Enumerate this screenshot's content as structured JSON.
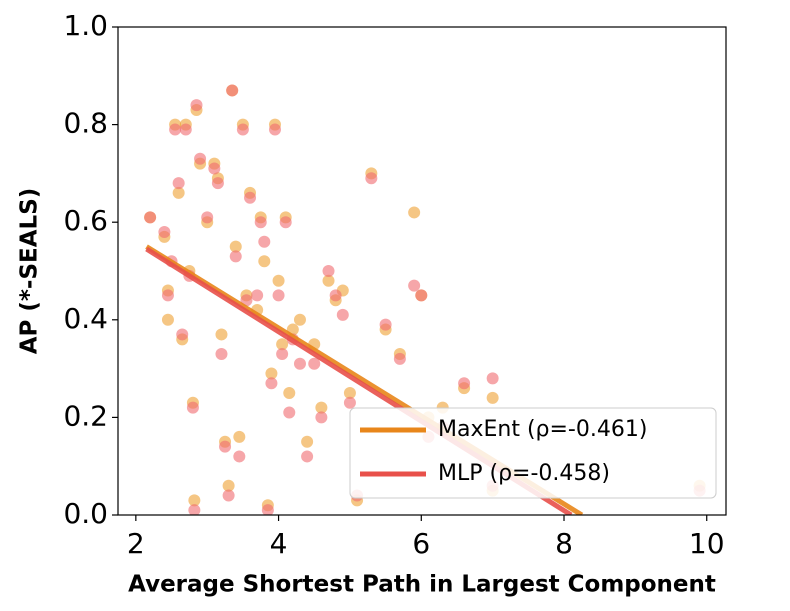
{
  "chart_data": {
    "type": "scatter",
    "x_label": "Average Shortest Path in Largest Component",
    "y_label": "AP (*-SEALS)",
    "xlim": [
      1.75,
      10.27
    ],
    "ylim": [
      0,
      1
    ],
    "xticks": [
      2,
      4,
      6,
      8,
      10
    ],
    "yticks": [
      {
        "value": 0,
        "label": "0.0"
      },
      0.2,
      0.4,
      0.6,
      0.8,
      {
        "value": 1,
        "label": "1.0"
      }
    ],
    "grid": false,
    "legend": "lower right",
    "series": [
      {
        "name": "MaxEnt (ρ=-0.461)",
        "color": "#eea032",
        "line_color": "#e8861a",
        "x": [
          2.2,
          2.4,
          2.45,
          2.45,
          2.55,
          2.6,
          2.65,
          2.7,
          2.75,
          2.8,
          2.82,
          2.85,
          2.9,
          3.0,
          3.1,
          3.15,
          3.2,
          3.25,
          3.3,
          3.35,
          3.4,
          3.45,
          3.5,
          3.55,
          3.6,
          3.7,
          3.75,
          3.8,
          3.85,
          3.9,
          3.95,
          4.0,
          4.05,
          4.1,
          4.15,
          4.2,
          4.3,
          4.4,
          4.5,
          4.6,
          4.7,
          4.8,
          4.9,
          5.0,
          5.1,
          5.3,
          5.5,
          5.7,
          5.9,
          6.0,
          6.1,
          6.3,
          6.6,
          7.0,
          7.0,
          9.9
        ],
        "y": [
          0.61,
          0.57,
          0.46,
          0.4,
          0.8,
          0.66,
          0.36,
          0.8,
          0.5,
          0.23,
          0.03,
          0.83,
          0.72,
          0.6,
          0.72,
          0.69,
          0.37,
          0.15,
          0.06,
          0.87,
          0.55,
          0.16,
          0.8,
          0.45,
          0.66,
          0.42,
          0.61,
          0.52,
          0.02,
          0.29,
          0.8,
          0.48,
          0.35,
          0.61,
          0.25,
          0.38,
          0.4,
          0.15,
          0.35,
          0.22,
          0.48,
          0.44,
          0.46,
          0.25,
          0.03,
          0.7,
          0.38,
          0.33,
          0.62,
          0.45,
          0.2,
          0.22,
          0.26,
          0.24,
          0.05,
          0.06
        ],
        "fit": {
          "x": [
            2.15,
            8.25
          ],
          "y": [
            0.55,
            0
          ]
        }
      },
      {
        "name": "MLP (ρ=-0.458)",
        "color": "#f06a70",
        "line_color": "#e8504a",
        "x": [
          2.2,
          2.4,
          2.45,
          2.5,
          2.55,
          2.6,
          2.65,
          2.7,
          2.75,
          2.8,
          2.82,
          2.85,
          2.9,
          3.0,
          3.1,
          3.15,
          3.2,
          3.25,
          3.3,
          3.35,
          3.4,
          3.45,
          3.5,
          3.55,
          3.6,
          3.7,
          3.75,
          3.8,
          3.85,
          3.9,
          3.95,
          4.0,
          4.05,
          4.1,
          4.15,
          4.2,
          4.3,
          4.4,
          4.5,
          4.6,
          4.7,
          4.8,
          4.9,
          5.0,
          5.1,
          5.3,
          5.5,
          5.7,
          5.9,
          6.0,
          6.1,
          6.3,
          6.6,
          7.0,
          7.0,
          9.9
        ],
        "y": [
          0.61,
          0.58,
          0.45,
          0.52,
          0.79,
          0.68,
          0.37,
          0.79,
          0.49,
          0.22,
          0.01,
          0.84,
          0.73,
          0.61,
          0.71,
          0.68,
          0.33,
          0.14,
          0.04,
          0.87,
          0.53,
          0.12,
          0.79,
          0.44,
          0.65,
          0.45,
          0.6,
          0.56,
          0.01,
          0.27,
          0.79,
          0.45,
          0.33,
          0.6,
          0.21,
          0.36,
          0.31,
          0.12,
          0.31,
          0.2,
          0.5,
          0.45,
          0.41,
          0.23,
          0.04,
          0.69,
          0.39,
          0.32,
          0.47,
          0.45,
          0.16,
          0.18,
          0.27,
          0.28,
          0.06,
          0.05
        ],
        "fit": {
          "x": [
            2.15,
            8.1
          ],
          "y": [
            0.545,
            0
          ]
        }
      }
    ]
  }
}
